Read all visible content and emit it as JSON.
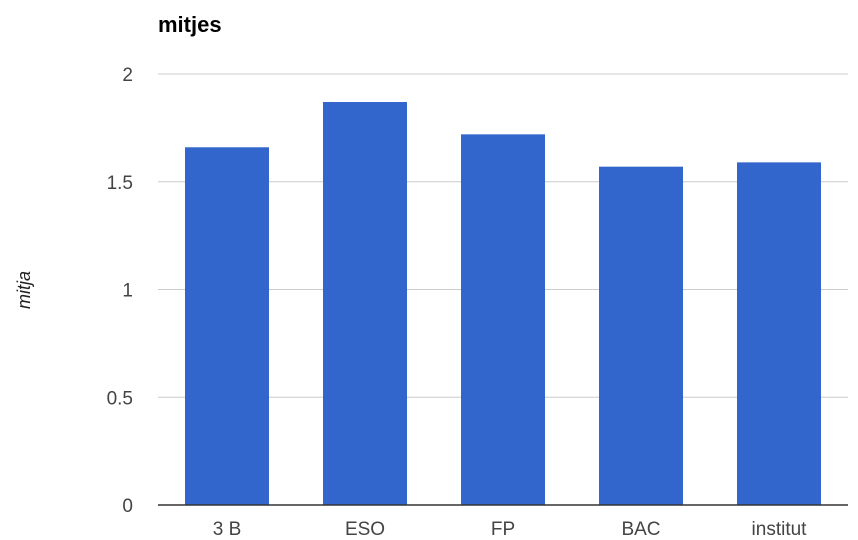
{
  "chart_data": {
    "type": "bar",
    "title": "mitjes",
    "xlabel": "",
    "ylabel": "mitja",
    "categories": [
      "3 B",
      "ESO",
      "FP",
      "BAC",
      "institut"
    ],
    "values": [
      1.66,
      1.87,
      1.72,
      1.57,
      1.59
    ],
    "ylim": [
      0,
      2
    ],
    "yticks": [
      "0",
      "0.5",
      "1",
      "1.5",
      "2"
    ],
    "grid": true,
    "legend": "none",
    "bar_color": "#3366cc"
  }
}
